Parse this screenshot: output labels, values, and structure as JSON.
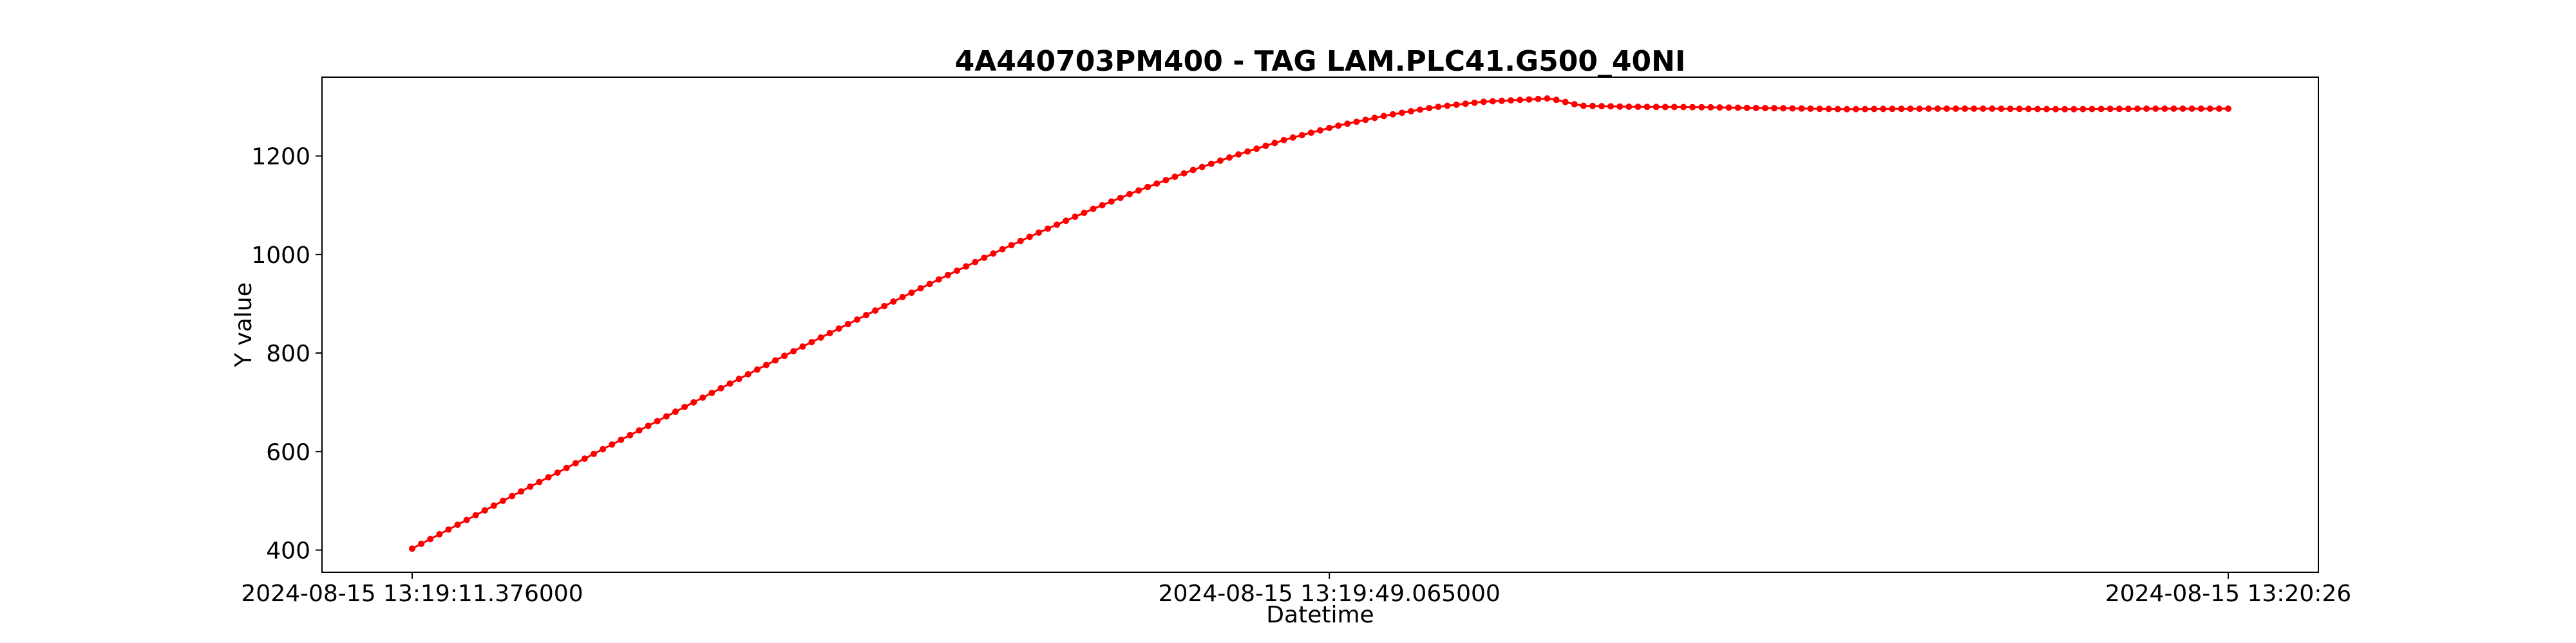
{
  "chart_data": {
    "type": "line",
    "title": "4A440703PM400 - TAG LAM.PLC41.G500_40NI",
    "xlabel": "Datetime",
    "ylabel": "Y value",
    "x_range_seconds": [
      0,
      74.624
    ],
    "ylim": [
      355,
      1360
    ],
    "grid": false,
    "legend": null,
    "marker": "circle",
    "color": "#ff0000",
    "x_ticks": [
      {
        "t": 0,
        "label": "2024-08-15 13:19:11.376000"
      },
      {
        "t": 37.689,
        "label": "2024-08-15 13:19:49.065000"
      },
      {
        "t": 74.624,
        "label": "2024-08-15 13:20:26"
      }
    ],
    "y_ticks": [
      400,
      600,
      800,
      1000,
      1200
    ],
    "series": [
      {
        "values": [
          [
            0,
            403
          ],
          [
            2,
            455
          ],
          [
            4,
            507
          ],
          [
            6,
            558
          ],
          [
            8,
            609
          ],
          [
            10,
            660
          ],
          [
            12,
            711
          ],
          [
            14,
            762
          ],
          [
            16,
            812
          ],
          [
            18,
            861
          ],
          [
            20,
            910
          ],
          [
            22,
            958
          ],
          [
            24,
            1005
          ],
          [
            26,
            1050
          ],
          [
            28,
            1093
          ],
          [
            30,
            1133
          ],
          [
            32,
            1170
          ],
          [
            34,
            1204
          ],
          [
            36,
            1235
          ],
          [
            38,
            1261
          ],
          [
            40,
            1282
          ],
          [
            42,
            1299
          ],
          [
            44,
            1310
          ],
          [
            46,
            1315
          ],
          [
            46.7,
            1317
          ],
          [
            47.2,
            1312
          ],
          [
            48,
            1302
          ],
          [
            50,
            1300
          ],
          [
            53,
            1299
          ],
          [
            56,
            1297
          ],
          [
            59,
            1295
          ],
          [
            62,
            1296
          ],
          [
            65,
            1296
          ],
          [
            68,
            1295
          ],
          [
            71,
            1296
          ],
          [
            74.624,
            1296
          ]
        ]
      }
    ]
  }
}
